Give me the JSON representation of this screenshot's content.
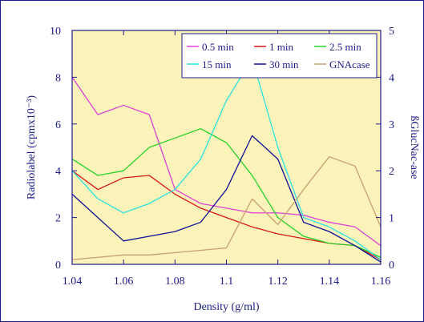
{
  "chart_data": {
    "type": "line",
    "xlabel": "Density (g/ml)",
    "ylabel": "Radiolabel (cpmx10⁻³)",
    "ylabel_right": "ßGlucNac-ase",
    "xlim": [
      1.04,
      1.16
    ],
    "ylim": [
      0,
      10
    ],
    "ylim_right": [
      0,
      5
    ],
    "x_ticks": [
      "1.04",
      "1.06",
      "1.08",
      "1.1",
      "1.12",
      "1.14",
      "1.16"
    ],
    "y_ticks": [
      "0",
      "2",
      "4",
      "6",
      "8",
      "10"
    ],
    "y_ticks_right": [
      "0",
      "1",
      "2",
      "3",
      "4",
      "5"
    ],
    "x": [
      1.04,
      1.05,
      1.06,
      1.07,
      1.08,
      1.09,
      1.1,
      1.11,
      1.12,
      1.13,
      1.14,
      1.15,
      1.16
    ],
    "legend_position": "top-right",
    "grid": false,
    "background_color": "#fbf3b9",
    "axis_color": "#1c1c8a",
    "series": [
      {
        "name": "0.5 min",
        "axis": "left",
        "color": "#e040d8",
        "values": [
          8.0,
          6.4,
          6.8,
          6.4,
          3.2,
          2.6,
          2.4,
          2.2,
          2.2,
          2.1,
          1.8,
          1.6,
          0.8
        ]
      },
      {
        "name": "1 min",
        "axis": "left",
        "color": "#d81818",
        "values": [
          4.0,
          3.2,
          3.7,
          3.8,
          3.0,
          2.4,
          2.0,
          1.6,
          1.3,
          1.1,
          0.9,
          0.8,
          0.2
        ]
      },
      {
        "name": "2.5 min",
        "axis": "left",
        "color": "#28d028",
        "values": [
          4.5,
          3.8,
          4.0,
          5.0,
          5.4,
          5.8,
          5.2,
          3.8,
          2.0,
          1.2,
          0.9,
          0.8,
          0.3
        ]
      },
      {
        "name": "15 min",
        "axis": "left",
        "color": "#2ee0e0",
        "values": [
          4.0,
          2.8,
          2.2,
          2.6,
          3.2,
          4.5,
          7.0,
          8.8,
          5.0,
          2.0,
          1.6,
          1.0,
          0.2
        ]
      },
      {
        "name": "30 min",
        "axis": "left",
        "color": "#10109a",
        "values": [
          3.0,
          2.0,
          1.0,
          1.2,
          1.4,
          1.8,
          3.2,
          5.5,
          4.5,
          1.8,
          1.4,
          0.8,
          0.1
        ]
      },
      {
        "name": "GNAcase",
        "axis": "right",
        "color": "#c8a070",
        "values": [
          0.1,
          0.15,
          0.2,
          0.2,
          0.25,
          0.3,
          0.35,
          1.4,
          0.85,
          1.6,
          2.3,
          2.1,
          0.8
        ]
      }
    ]
  }
}
